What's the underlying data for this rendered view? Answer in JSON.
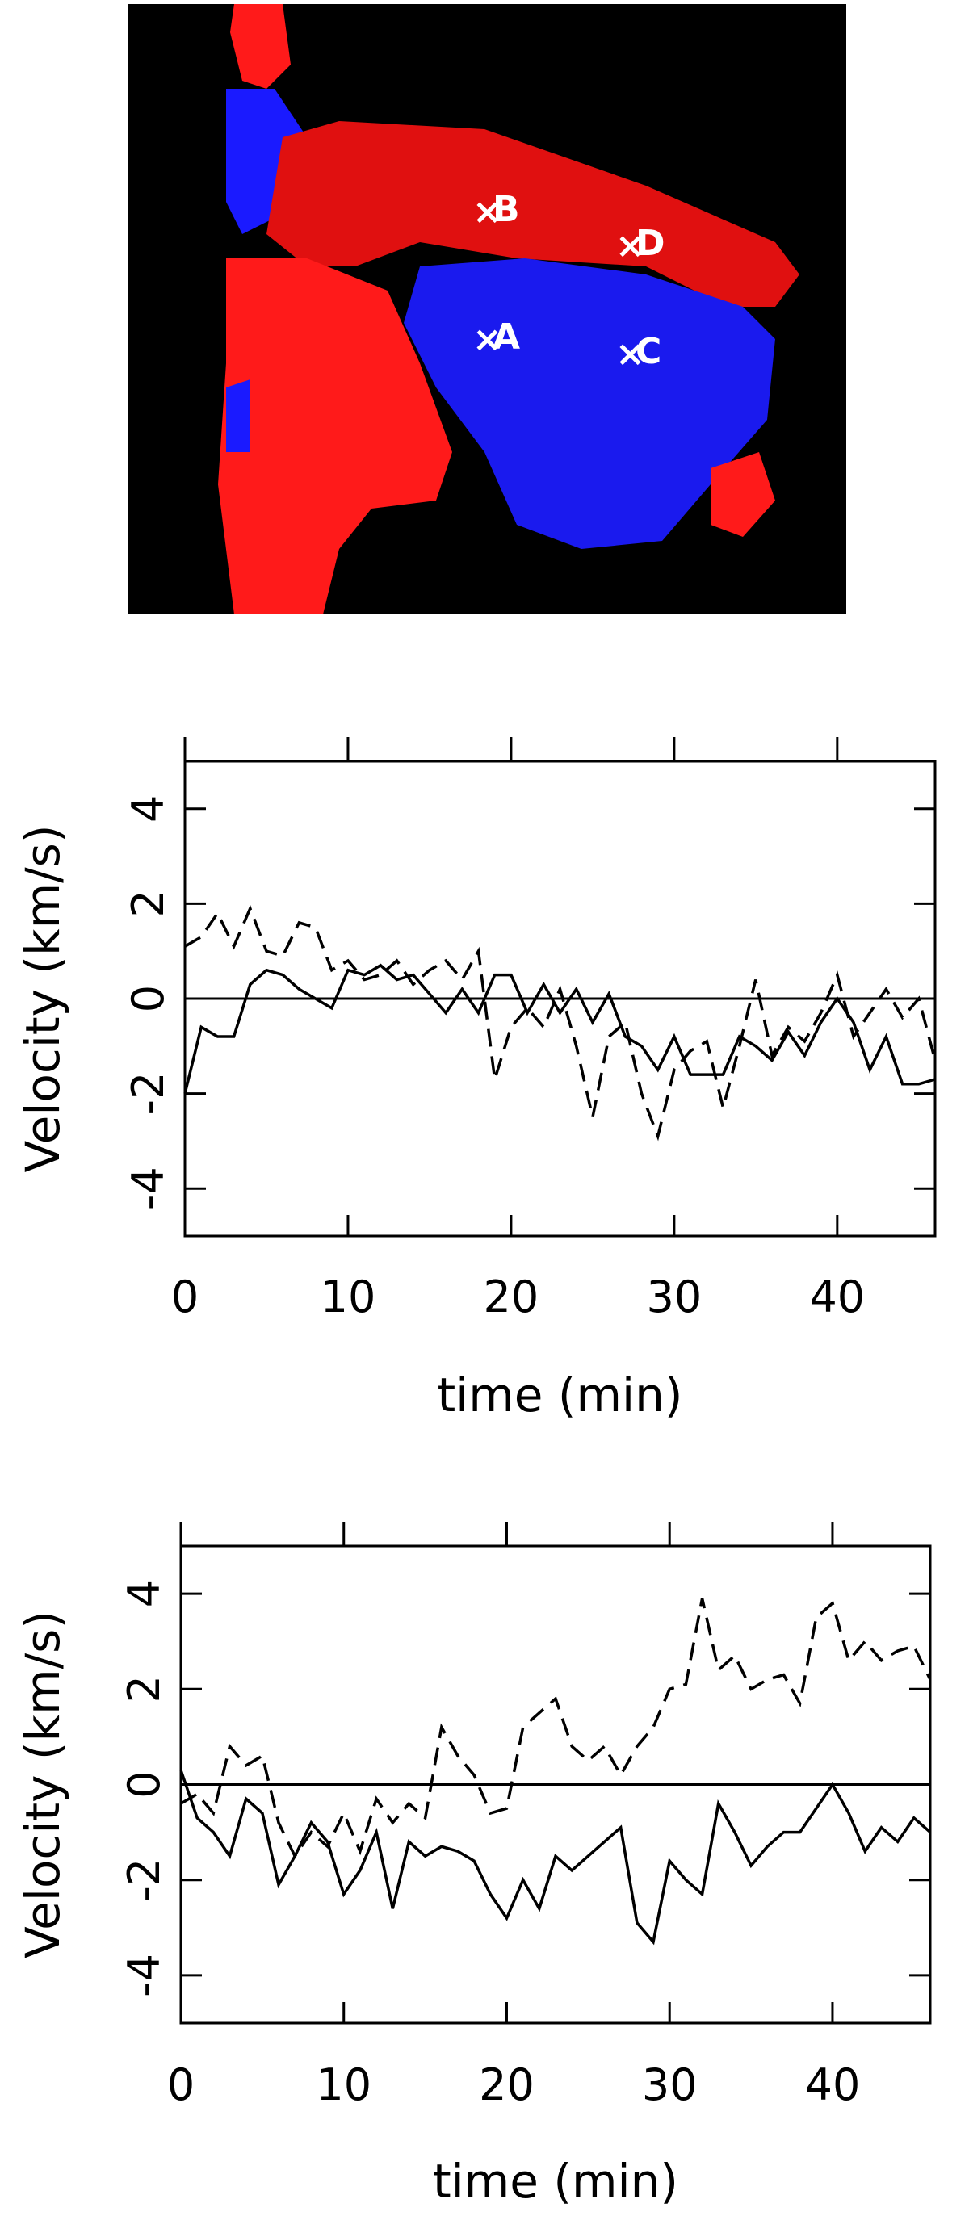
{
  "image": {
    "labels": [
      "A",
      "B",
      "C",
      "D"
    ]
  },
  "chart_data": [
    {
      "type": "line",
      "xlabel": "time (min)",
      "ylabel": "Velocity (km/s)",
      "x": [
        0,
        1,
        2,
        3,
        4,
        5,
        6,
        7,
        8,
        9,
        10,
        11,
        12,
        13,
        14,
        15,
        16,
        17,
        18,
        19,
        20,
        21,
        22,
        23,
        24,
        25,
        26,
        27,
        28,
        29,
        30,
        31,
        32,
        33,
        34,
        35,
        36,
        37,
        38,
        39,
        40,
        41,
        42,
        43,
        44,
        45,
        46
      ],
      "xlim": [
        0,
        46
      ],
      "xticks": [
        0,
        10,
        20,
        30,
        40
      ],
      "ylim": [
        -5,
        5
      ],
      "yticks": [
        -4,
        -2,
        0,
        2,
        4
      ],
      "zero_line": true,
      "series": [
        {
          "color": "#000000",
          "dash": "solid",
          "values": [
            -2,
            -0.6,
            -0.8,
            -0.8,
            0.3,
            0.6,
            0.5,
            0.2,
            0,
            -0.2,
            0.6,
            0.5,
            0.7,
            0.4,
            0.5,
            0.1,
            -0.3,
            0.2,
            -0.3,
            0.5,
            0.5,
            -0.3,
            0.3,
            -0.3,
            0.2,
            -0.5,
            0.1,
            -0.8,
            -1,
            -1.5,
            -0.8,
            -1.6,
            -1.6,
            -1.6,
            -0.8,
            -1,
            -1.3,
            -0.7,
            -1.2,
            -0.5,
            0,
            -0.5,
            -1.5,
            -0.8,
            -1.8,
            -1.8,
            -1.7
          ]
        },
        {
          "color": "#000000",
          "dash": "dashed",
          "values": [
            1.1,
            1.3,
            1.8,
            1.1,
            1.9,
            1.0,
            0.9,
            1.6,
            1.5,
            0.6,
            0.8,
            0.4,
            0.5,
            0.8,
            0.3,
            0.6,
            0.8,
            0.4,
            1.0,
            -1.7,
            -0.6,
            -0.2,
            -0.6,
            0.2,
            -1.0,
            -2.5,
            -0.8,
            -0.5,
            -2.0,
            -2.9,
            -1.5,
            -1.1,
            -0.9,
            -2.3,
            -1.0,
            0.4,
            -1.2,
            -0.6,
            -0.9,
            -0.3,
            0.5,
            -0.8,
            -0.3,
            0.2,
            -0.4,
            0,
            -1.3
          ]
        }
      ]
    },
    {
      "type": "line",
      "xlabel": "time (min)",
      "ylabel": "Velocity (km/s)",
      "x": [
        0,
        1,
        2,
        3,
        4,
        5,
        6,
        7,
        8,
        9,
        10,
        11,
        12,
        13,
        14,
        15,
        16,
        17,
        18,
        19,
        20,
        21,
        22,
        23,
        24,
        25,
        26,
        27,
        28,
        29,
        30,
        31,
        32,
        33,
        34,
        35,
        36,
        37,
        38,
        39,
        40,
        41,
        42,
        43,
        44,
        45,
        46
      ],
      "xlim": [
        0,
        46
      ],
      "xticks": [
        0,
        10,
        20,
        30,
        40
      ],
      "ylim": [
        -5,
        5
      ],
      "yticks": [
        -4,
        -2,
        0,
        2,
        4
      ],
      "zero_line": true,
      "series": [
        {
          "color": "#000000",
          "dash": "solid",
          "values": [
            0.3,
            -0.7,
            -1.0,
            -1.5,
            -0.3,
            -0.6,
            -2.1,
            -1.5,
            -0.8,
            -1.2,
            -2.3,
            -1.8,
            -1.0,
            -2.6,
            -1.2,
            -1.5,
            -1.3,
            -1.4,
            -1.6,
            -2.3,
            -2.8,
            -2.0,
            -2.6,
            -1.5,
            -1.8,
            -1.5,
            -1.2,
            -0.9,
            -2.9,
            -3.3,
            -1.6,
            -2.0,
            -2.3,
            -0.4,
            -1.0,
            -1.7,
            -1.3,
            -1.0,
            -1.0,
            -0.5,
            0,
            -0.6,
            -1.4,
            -0.9,
            -1.2,
            -0.7,
            -1.0
          ]
        },
        {
          "color": "#000000",
          "dash": "dashed",
          "values": [
            -0.4,
            -0.2,
            -0.6,
            0.8,
            0.4,
            0.6,
            -0.8,
            -1.5,
            -1.0,
            -1.3,
            -0.6,
            -1.4,
            -0.3,
            -0.8,
            -0.4,
            -0.7,
            1.2,
            0.6,
            0.2,
            -0.6,
            -0.5,
            1.2,
            1.5,
            1.8,
            0.8,
            0.5,
            0.8,
            0.2,
            0.8,
            1.2,
            2.0,
            2.1,
            3.9,
            2.4,
            2.7,
            2.0,
            2.2,
            2.3,
            1.7,
            3.5,
            3.8,
            2.6,
            3.0,
            2.6,
            2.8,
            2.9,
            2.2
          ]
        }
      ]
    }
  ]
}
